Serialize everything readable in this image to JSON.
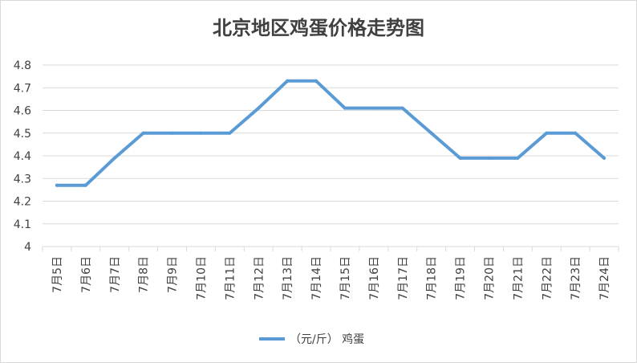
{
  "chart_data": {
    "type": "line",
    "title": "北京地区鸡蛋价格走势图",
    "categories": [
      "7月5日",
      "7月6日",
      "7月7日",
      "7月8日",
      "7月9日",
      "7月10日",
      "7月11日",
      "7月12日",
      "7月13日",
      "7月14日",
      "7月15日",
      "7月16日",
      "7月17日",
      "7月18日",
      "7月19日",
      "7月20日",
      "7月21日",
      "7月22日",
      "7月23日",
      "7月24日"
    ],
    "series": [
      {
        "name": "（元/斤） 鸡蛋",
        "color": "#5b9bd5",
        "values": [
          4.27,
          4.27,
          4.39,
          4.5,
          4.5,
          4.5,
          4.5,
          4.61,
          4.73,
          4.73,
          4.61,
          4.61,
          4.61,
          4.5,
          4.39,
          4.39,
          4.39,
          4.5,
          4.5,
          4.39
        ]
      }
    ],
    "ylim": [
      4,
      4.8
    ],
    "yticks": [
      "4",
      "4.1",
      "4.2",
      "4.3",
      "4.4",
      "4.5",
      "4.6",
      "4.7",
      "4.8"
    ],
    "grid": true,
    "legend_position": "bottom"
  }
}
